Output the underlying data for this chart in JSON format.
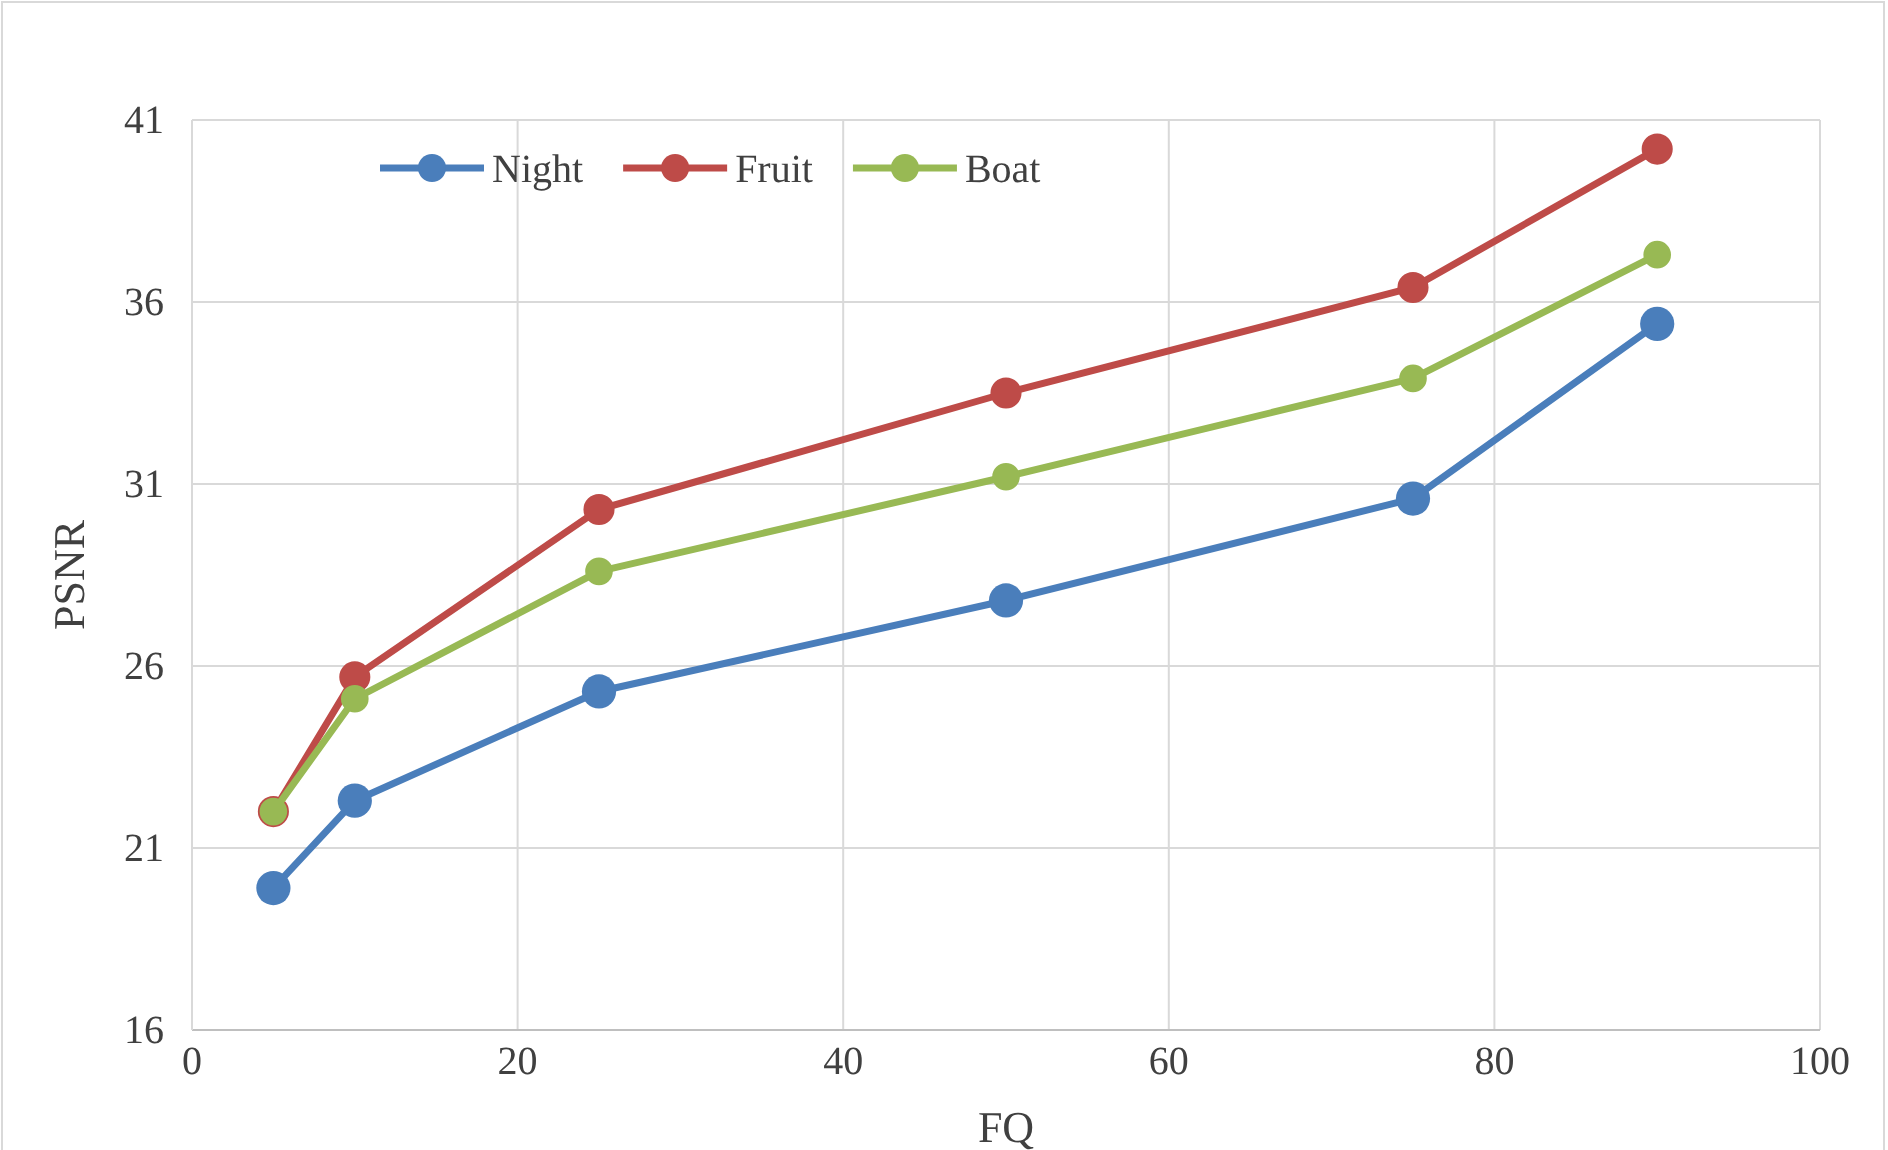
{
  "chart_data": {
    "type": "line",
    "xlabel": "FQ",
    "ylabel": "PSNR",
    "x": [
      5,
      10,
      25,
      50,
      75,
      90
    ],
    "series": [
      {
        "name": "Night",
        "color": "#4a7ebb",
        "values": [
          19.9,
          22.3,
          25.3,
          27.8,
          30.6,
          35.4
        ]
      },
      {
        "name": "Fruit",
        "color": "#be4b48",
        "values": [
          22.0,
          25.7,
          30.3,
          33.5,
          36.4,
          40.2
        ]
      },
      {
        "name": "Boat",
        "color": "#98b954",
        "values": [
          22.0,
          25.1,
          28.6,
          31.2,
          33.9,
          37.3
        ]
      }
    ],
    "xlim": [
      0,
      100
    ],
    "xticks": [
      0,
      20,
      40,
      60,
      80,
      100
    ],
    "ylim": [
      16,
      41
    ],
    "yticks": [
      16,
      21,
      26,
      31,
      36,
      41
    ],
    "grid": true,
    "legend": "top left",
    "marker": "circle",
    "line_style": "solid"
  }
}
